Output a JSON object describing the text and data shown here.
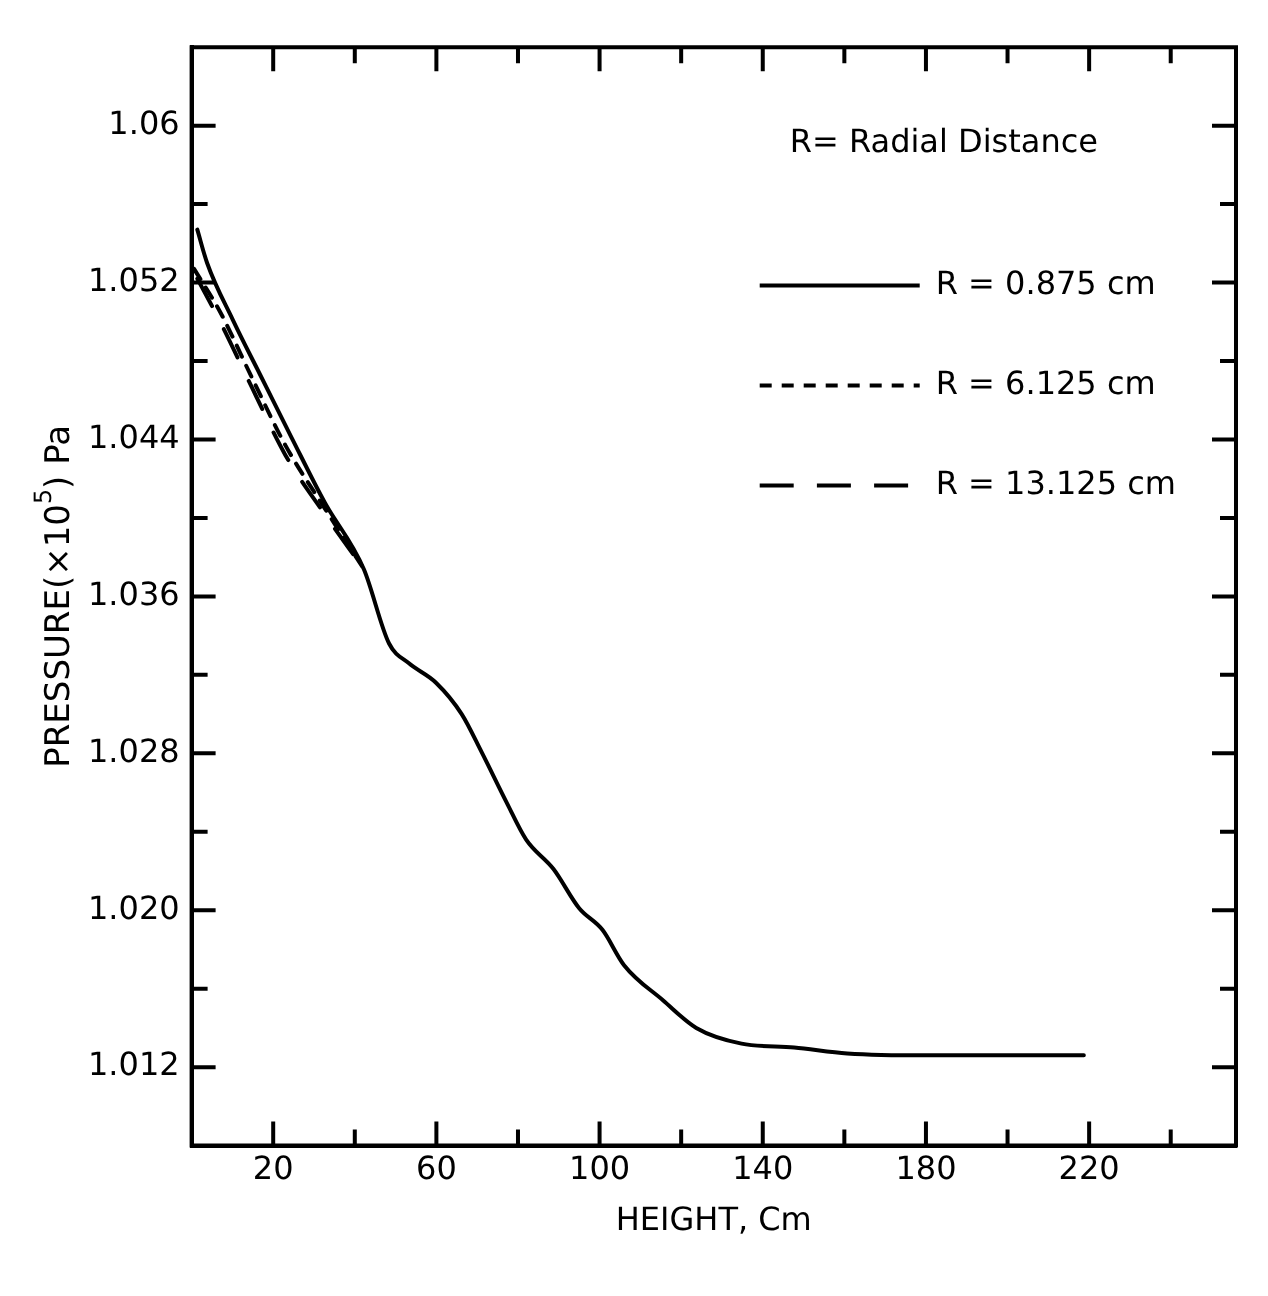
{
  "chart_data": {
    "type": "line",
    "xlabel": "HEIGHT, Cm",
    "ylabel": "PRESSURE(×10$^{5}$) Pa",
    "legend_title": "R= Radial Distance",
    "legend": "top right",
    "grid": false,
    "marker": "none",
    "xlim": [
      0,
      256
    ],
    "ylim": [
      1.008,
      1.064
    ],
    "xticks": [
      20,
      {
        "value": 40,
        "label": null
      },
      60,
      {
        "value": 80,
        "label": null
      },
      100,
      {
        "value": 120,
        "label": null
      },
      140,
      {
        "value": 160,
        "label": null
      },
      180,
      {
        "value": 200,
        "label": null
      },
      220,
      {
        "value": 240,
        "label": null
      }
    ],
    "yticks": [
      1.012,
      {
        "value": 1.016,
        "label": null
      },
      {
        "value": 1.02,
        "label": "1.020"
      },
      {
        "value": 1.024,
        "label": null
      },
      1.028,
      {
        "value": 1.032,
        "label": null
      },
      1.036,
      {
        "value": 1.04,
        "label": null
      },
      1.044,
      {
        "value": 1.048,
        "label": null
      },
      1.052,
      {
        "value": 1.056,
        "label": null
      },
      1.06
    ],
    "series": [
      {
        "name": "R = 0.875 cm",
        "color": "#000000",
        "line_style": "solid",
        "x": [
          1.4,
          3.8,
          10.1,
          16.8,
          24.5,
          32.6,
          42.2,
          48.4,
          53.2,
          59.9,
          66.2,
          71,
          77.2,
          82,
          88.7,
          95,
          100.7,
          106,
          115.6,
          123.7,
          134.8,
          147.7,
          160.7,
          179.9,
          218.7
        ],
        "values": [
          1.0547,
          1.053,
          1.0501,
          1.0473,
          1.0441,
          1.0408,
          1.0374,
          1.0336,
          1.0326,
          1.0316,
          1.03,
          1.0281,
          1.0255,
          1.0236,
          1.0221,
          1.0201,
          1.019,
          1.0172,
          1.0154,
          1.014,
          1.0132,
          1.013,
          1.0127,
          1.0126,
          1.0126
        ]
      },
      {
        "name": "R = 6.125 cm",
        "color": "#000000",
        "line_style": "dashed",
        "x": [
          0.6,
          7,
          14.9,
          23,
          32.6,
          42.2
        ],
        "values": [
          1.0527,
          1.0505,
          1.0471,
          1.0437,
          1.0405,
          1.0374
        ]
      },
      {
        "name": "R = 13.125 cm",
        "color": "#000000",
        "line_style": "dashed",
        "x": [
          1.4,
          7,
          14.9,
          23,
          32.6,
          42.2
        ],
        "values": [
          1.0522,
          1.05,
          1.0466,
          1.0432,
          1.0402,
          1.0374
        ]
      }
    ]
  }
}
